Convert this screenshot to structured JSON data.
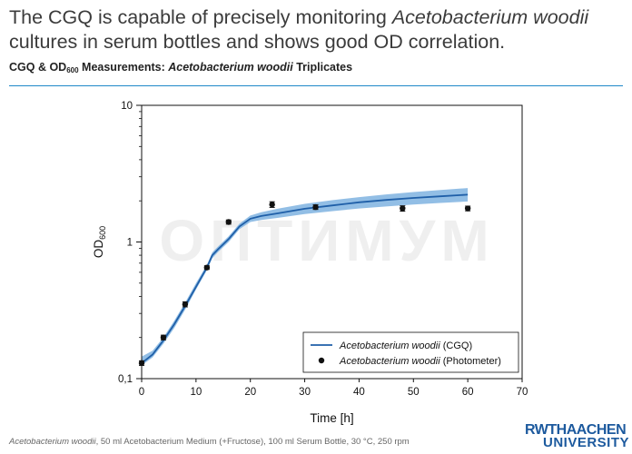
{
  "headline": {
    "part1": "The CGQ is capable of precisely monitoring ",
    "species": "Acetobacterium woodii",
    "part2": " cultures in serum bottles and shows good OD correlation."
  },
  "subhead": {
    "prefix": "CGQ & OD",
    "subscript": "600",
    "middle": " Measurements: ",
    "species": "Acetobacterium woodii",
    "suffix": " Triplicates"
  },
  "footer": {
    "species": "Acetobacterium woodii",
    "text": ", 50 ml Acetobacterium Medium (+Fructose), 100 ml Serum Bottle, 30 °C, 250 rpm"
  },
  "logo": {
    "line1": "RWTHAACHEN",
    "line2": "UNIVERSITY"
  },
  "watermark": "ОПТИМУМ",
  "chart_data": {
    "type": "line",
    "xlabel": "Time [h]",
    "ylabel": "OD",
    "ylabel_subscript": "600",
    "xlim": [
      0,
      70
    ],
    "ylim": [
      0.1,
      10
    ],
    "y_scale": "log",
    "x_ticks": [
      0,
      10,
      20,
      30,
      40,
      50,
      60,
      70
    ],
    "y_ticks": [
      {
        "value": 0.1,
        "label": "0,1"
      },
      {
        "value": 1,
        "label": "1"
      },
      {
        "value": 10,
        "label": "10"
      }
    ],
    "grid": false,
    "legend_position": "bottom-right",
    "colors": {
      "cgq": "#1f5fa8",
      "band": "#7fb3e0",
      "photometer": "#111111"
    },
    "series": [
      {
        "name": "(CGQ)",
        "species": "Acetobacterium woodii",
        "kind": "line",
        "x": [
          0,
          2,
          4,
          6,
          8,
          10,
          12,
          13,
          14,
          16,
          18,
          20,
          22,
          25,
          30,
          35,
          40,
          45,
          50,
          55,
          60
        ],
        "y": [
          0.13,
          0.15,
          0.19,
          0.25,
          0.34,
          0.47,
          0.65,
          0.8,
          0.88,
          1.05,
          1.3,
          1.48,
          1.55,
          1.62,
          1.75,
          1.85,
          1.95,
          2.03,
          2.1,
          2.16,
          2.22
        ],
        "band_low": [
          0.125,
          0.143,
          0.18,
          0.235,
          0.32,
          0.45,
          0.62,
          0.76,
          0.84,
          1.0,
          1.24,
          1.4,
          1.45,
          1.5,
          1.6,
          1.68,
          1.76,
          1.82,
          1.88,
          1.93,
          1.98
        ],
        "band_high": [
          0.145,
          0.16,
          0.2,
          0.265,
          0.36,
          0.5,
          0.68,
          0.84,
          0.92,
          1.1,
          1.36,
          1.56,
          1.65,
          1.75,
          1.9,
          2.02,
          2.13,
          2.23,
          2.32,
          2.4,
          2.48
        ]
      },
      {
        "name": "(Photometer)",
        "species": "Acetobacterium woodii",
        "kind": "points",
        "x": [
          0,
          4,
          8,
          12,
          16,
          24,
          32,
          48,
          60
        ],
        "y": [
          0.13,
          0.2,
          0.35,
          0.65,
          1.4,
          1.88,
          1.8,
          1.76,
          1.76
        ],
        "err": [
          0.005,
          0.008,
          0.015,
          0.02,
          0.05,
          0.09,
          0.07,
          0.08,
          0.07
        ]
      }
    ]
  }
}
